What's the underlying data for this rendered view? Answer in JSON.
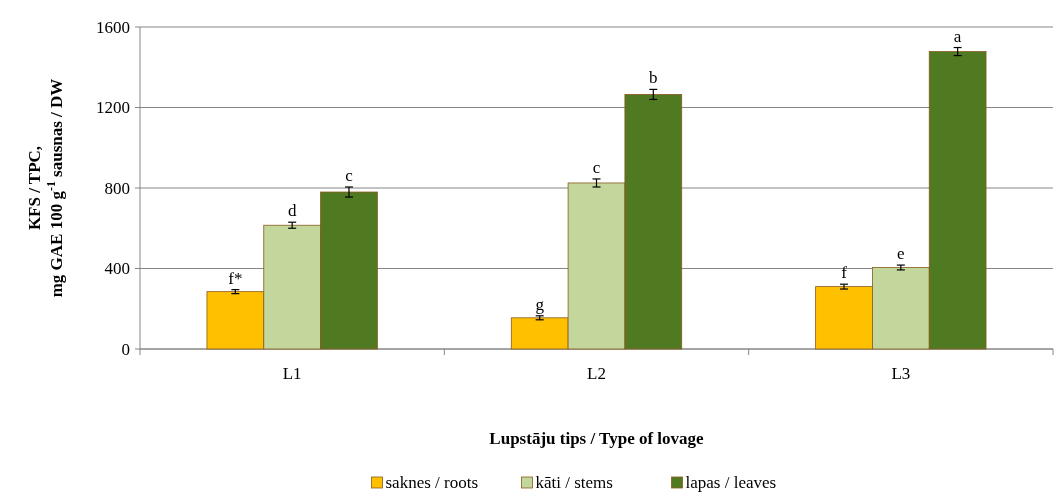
{
  "chart_data": {
    "type": "bar",
    "xlabel": "Lupstāju tips / Type of lovage",
    "ylabel": "KFS / TPC,\nmg GAE 100 g$^{-1}$ sausnas / DW",
    "categories": [
      "L1",
      "L2",
      "L3"
    ],
    "series": [
      {
        "name": "saknes / roots",
        "color": "#ffc000",
        "values": [
          285,
          155,
          310
        ],
        "errors": [
          10,
          10,
          12
        ]
      },
      {
        "name": "kāti / stems",
        "color": "#c3d69b",
        "values": [
          615,
          825,
          405
        ],
        "errors": [
          15,
          20,
          12
        ]
      },
      {
        "name": "lapas / leaves",
        "color": "#4f7a21",
        "values": [
          780,
          1265,
          1478
        ],
        "errors": [
          25,
          25,
          20
        ]
      }
    ],
    "ylim": [
      0,
      1600
    ],
    "yticks": [
      0,
      400,
      800,
      1200,
      1600
    ],
    "grid": "y",
    "legend": "bottom",
    "annotations": [
      "f*",
      "d",
      "c",
      "g",
      "c",
      "b",
      "f",
      "e",
      "a"
    ]
  }
}
